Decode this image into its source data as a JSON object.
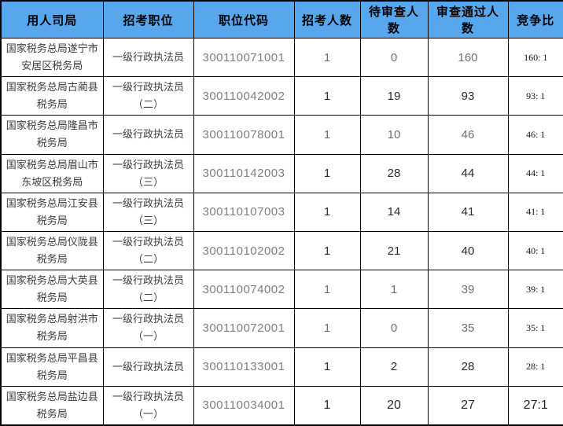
{
  "colors": {
    "header_bg": "#58a7ec",
    "header_text": "#000000",
    "border": "#000000"
  },
  "chart_data": {
    "type": "table",
    "columns": [
      "用人司局",
      "招考职位",
      "职位代码",
      "招考人数",
      "待审查人数",
      "审查通过人数",
      "竞争比"
    ],
    "rows": [
      {
        "department": "国家税务总局遂宁市安居区税务局",
        "position": "一级行政执法员",
        "code": "300110071001",
        "recruits": "1",
        "pending": "0",
        "passed": "160",
        "ratio": "160: 1",
        "num_shade": "light",
        "emphasized": false
      },
      {
        "department": "国家税务总局古蔺县税务局",
        "position": "一级行政执法员（二）",
        "code": "300110042002",
        "recruits": "1",
        "pending": "19",
        "passed": "93",
        "ratio": "93: 1",
        "num_shade": "dark",
        "emphasized": false
      },
      {
        "department": "国家税务总局隆昌市税务局",
        "position": "一级行政执法员",
        "code": "300110078001",
        "recruits": "1",
        "pending": "10",
        "passed": "46",
        "ratio": "46: 1",
        "num_shade": "light",
        "emphasized": false
      },
      {
        "department": "国家税务总局眉山市东坡区税务局",
        "position": "一级行政执法员（三）",
        "code": "300110142003",
        "recruits": "1",
        "pending": "28",
        "passed": "44",
        "ratio": "44: 1",
        "num_shade": "dark",
        "emphasized": false
      },
      {
        "department": "国家税务总局江安县税务局",
        "position": "一级行政执法员（三）",
        "code": "300110107003",
        "recruits": "1",
        "pending": "14",
        "passed": "41",
        "ratio": "41: 1",
        "num_shade": "dark",
        "emphasized": false
      },
      {
        "department": "国家税务总局仪陇县税务局",
        "position": "一级行政执法员（二）",
        "code": "300110102002",
        "recruits": "1",
        "pending": "21",
        "passed": "40",
        "ratio": "40: 1",
        "num_shade": "dark",
        "emphasized": false
      },
      {
        "department": "国家税务总局大英县税务局",
        "position": "一级行政执法员（二）",
        "code": "300110074002",
        "recruits": "1",
        "pending": "1",
        "passed": "39",
        "ratio": "39: 1",
        "num_shade": "light",
        "emphasized": false
      },
      {
        "department": "国家税务总局射洪市税务局",
        "position": "一级行政执法员（一）",
        "code": "300110072001",
        "recruits": "1",
        "pending": "0",
        "passed": "35",
        "ratio": "35: 1",
        "num_shade": "light",
        "emphasized": false
      },
      {
        "department": "国家税务总局平昌县税务局",
        "position": "一级行政执法员",
        "code": "300110133001",
        "recruits": "1",
        "pending": "2",
        "passed": "28",
        "ratio": "28: 1",
        "num_shade": "dark",
        "emphasized": false
      },
      {
        "department": "国家税务总局盐边县税务局",
        "position": "一级行政执法员（一）",
        "code": "300110034001",
        "recruits": "1",
        "pending": "20",
        "passed": "27",
        "ratio": "27:1",
        "num_shade": "dark",
        "emphasized": true
      }
    ]
  }
}
